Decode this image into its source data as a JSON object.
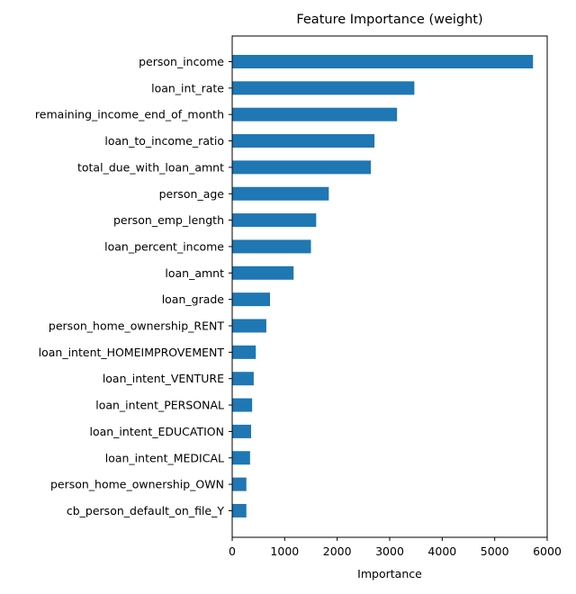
{
  "chart_data": {
    "type": "bar",
    "orientation": "horizontal",
    "title": "Feature Importance (weight)",
    "xlabel": "Importance",
    "ylabel": "",
    "xlim": [
      0,
      6000
    ],
    "xticks": [
      0,
      1000,
      2000,
      3000,
      4000,
      5000,
      6000
    ],
    "grid": false,
    "bar_color": "#1f77b4",
    "categories": [
      "person_income",
      "loan_int_rate",
      "remaining_income_end_of_month",
      "loan_to_income_ratio",
      "total_due_with_loan_amnt",
      "person_age",
      "person_emp_length",
      "loan_percent_income",
      "loan_amnt",
      "loan_grade",
      "person_home_ownership_RENT",
      "loan_intent_HOMEIMPROVEMENT",
      "loan_intent_VENTURE",
      "loan_intent_PERSONAL",
      "loan_intent_EDUCATION",
      "loan_intent_MEDICAL",
      "person_home_ownership_OWN",
      "cb_person_default_on_file_Y"
    ],
    "values": [
      5730,
      3470,
      3140,
      2710,
      2640,
      1840,
      1600,
      1500,
      1170,
      720,
      650,
      450,
      410,
      380,
      360,
      340,
      270,
      270
    ]
  }
}
